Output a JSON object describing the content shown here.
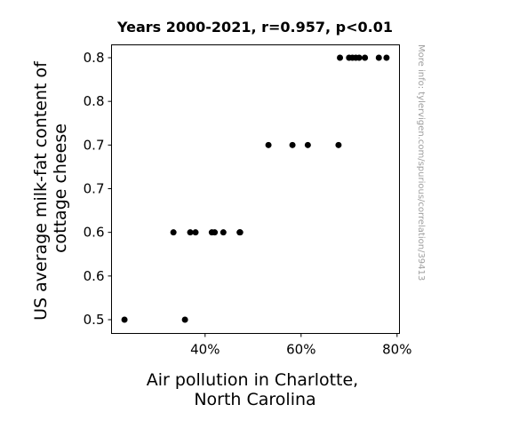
{
  "chart_data": {
    "type": "scatter",
    "title": "Years 2000-2021, r=0.957, p<0.01",
    "xlabel": [
      "Air pollution in Charlotte,",
      "North Carolina"
    ],
    "ylabel": [
      "US average milk-fat content of",
      "cottage cheese"
    ],
    "credit": "More info: tylervigen.com/spurious/correlation/39413",
    "xlim": [
      0.205,
      0.805
    ],
    "ylim": [
      0.47,
      0.8
    ],
    "x_ticks": [
      {
        "value": 0.4,
        "label": "40%"
      },
      {
        "value": 0.6,
        "label": "60%"
      },
      {
        "value": 0.8,
        "label": "80%"
      }
    ],
    "y_ticks": [
      {
        "value": 0.5,
        "label": "0.5"
      },
      {
        "value": 0.55,
        "label": "0.6"
      },
      {
        "value": 0.6,
        "label": "0.6"
      },
      {
        "value": 0.65,
        "label": "0.7"
      },
      {
        "value": 0.7,
        "label": "0.7"
      },
      {
        "value": 0.75,
        "label": "0.8"
      },
      {
        "value": 0.8,
        "label": "0.8"
      }
    ],
    "grid": false,
    "marker_color": "#000000",
    "points": [
      {
        "x": 0.232,
        "y": 0.5
      },
      {
        "x": 0.358,
        "y": 0.5
      },
      {
        "x": 0.334,
        "y": 0.6
      },
      {
        "x": 0.369,
        "y": 0.6
      },
      {
        "x": 0.38,
        "y": 0.6
      },
      {
        "x": 0.414,
        "y": 0.6
      },
      {
        "x": 0.42,
        "y": 0.6
      },
      {
        "x": 0.438,
        "y": 0.6
      },
      {
        "x": 0.472,
        "y": 0.6
      },
      {
        "x": 0.473,
        "y": 0.6
      },
      {
        "x": 0.532,
        "y": 0.7
      },
      {
        "x": 0.582,
        "y": 0.7
      },
      {
        "x": 0.614,
        "y": 0.7
      },
      {
        "x": 0.678,
        "y": 0.7
      },
      {
        "x": 0.681,
        "y": 0.8
      },
      {
        "x": 0.7,
        "y": 0.8
      },
      {
        "x": 0.707,
        "y": 0.8
      },
      {
        "x": 0.714,
        "y": 0.8
      },
      {
        "x": 0.721,
        "y": 0.8
      },
      {
        "x": 0.733,
        "y": 0.8
      },
      {
        "x": 0.762,
        "y": 0.8
      },
      {
        "x": 0.778,
        "y": 0.8
      }
    ]
  }
}
